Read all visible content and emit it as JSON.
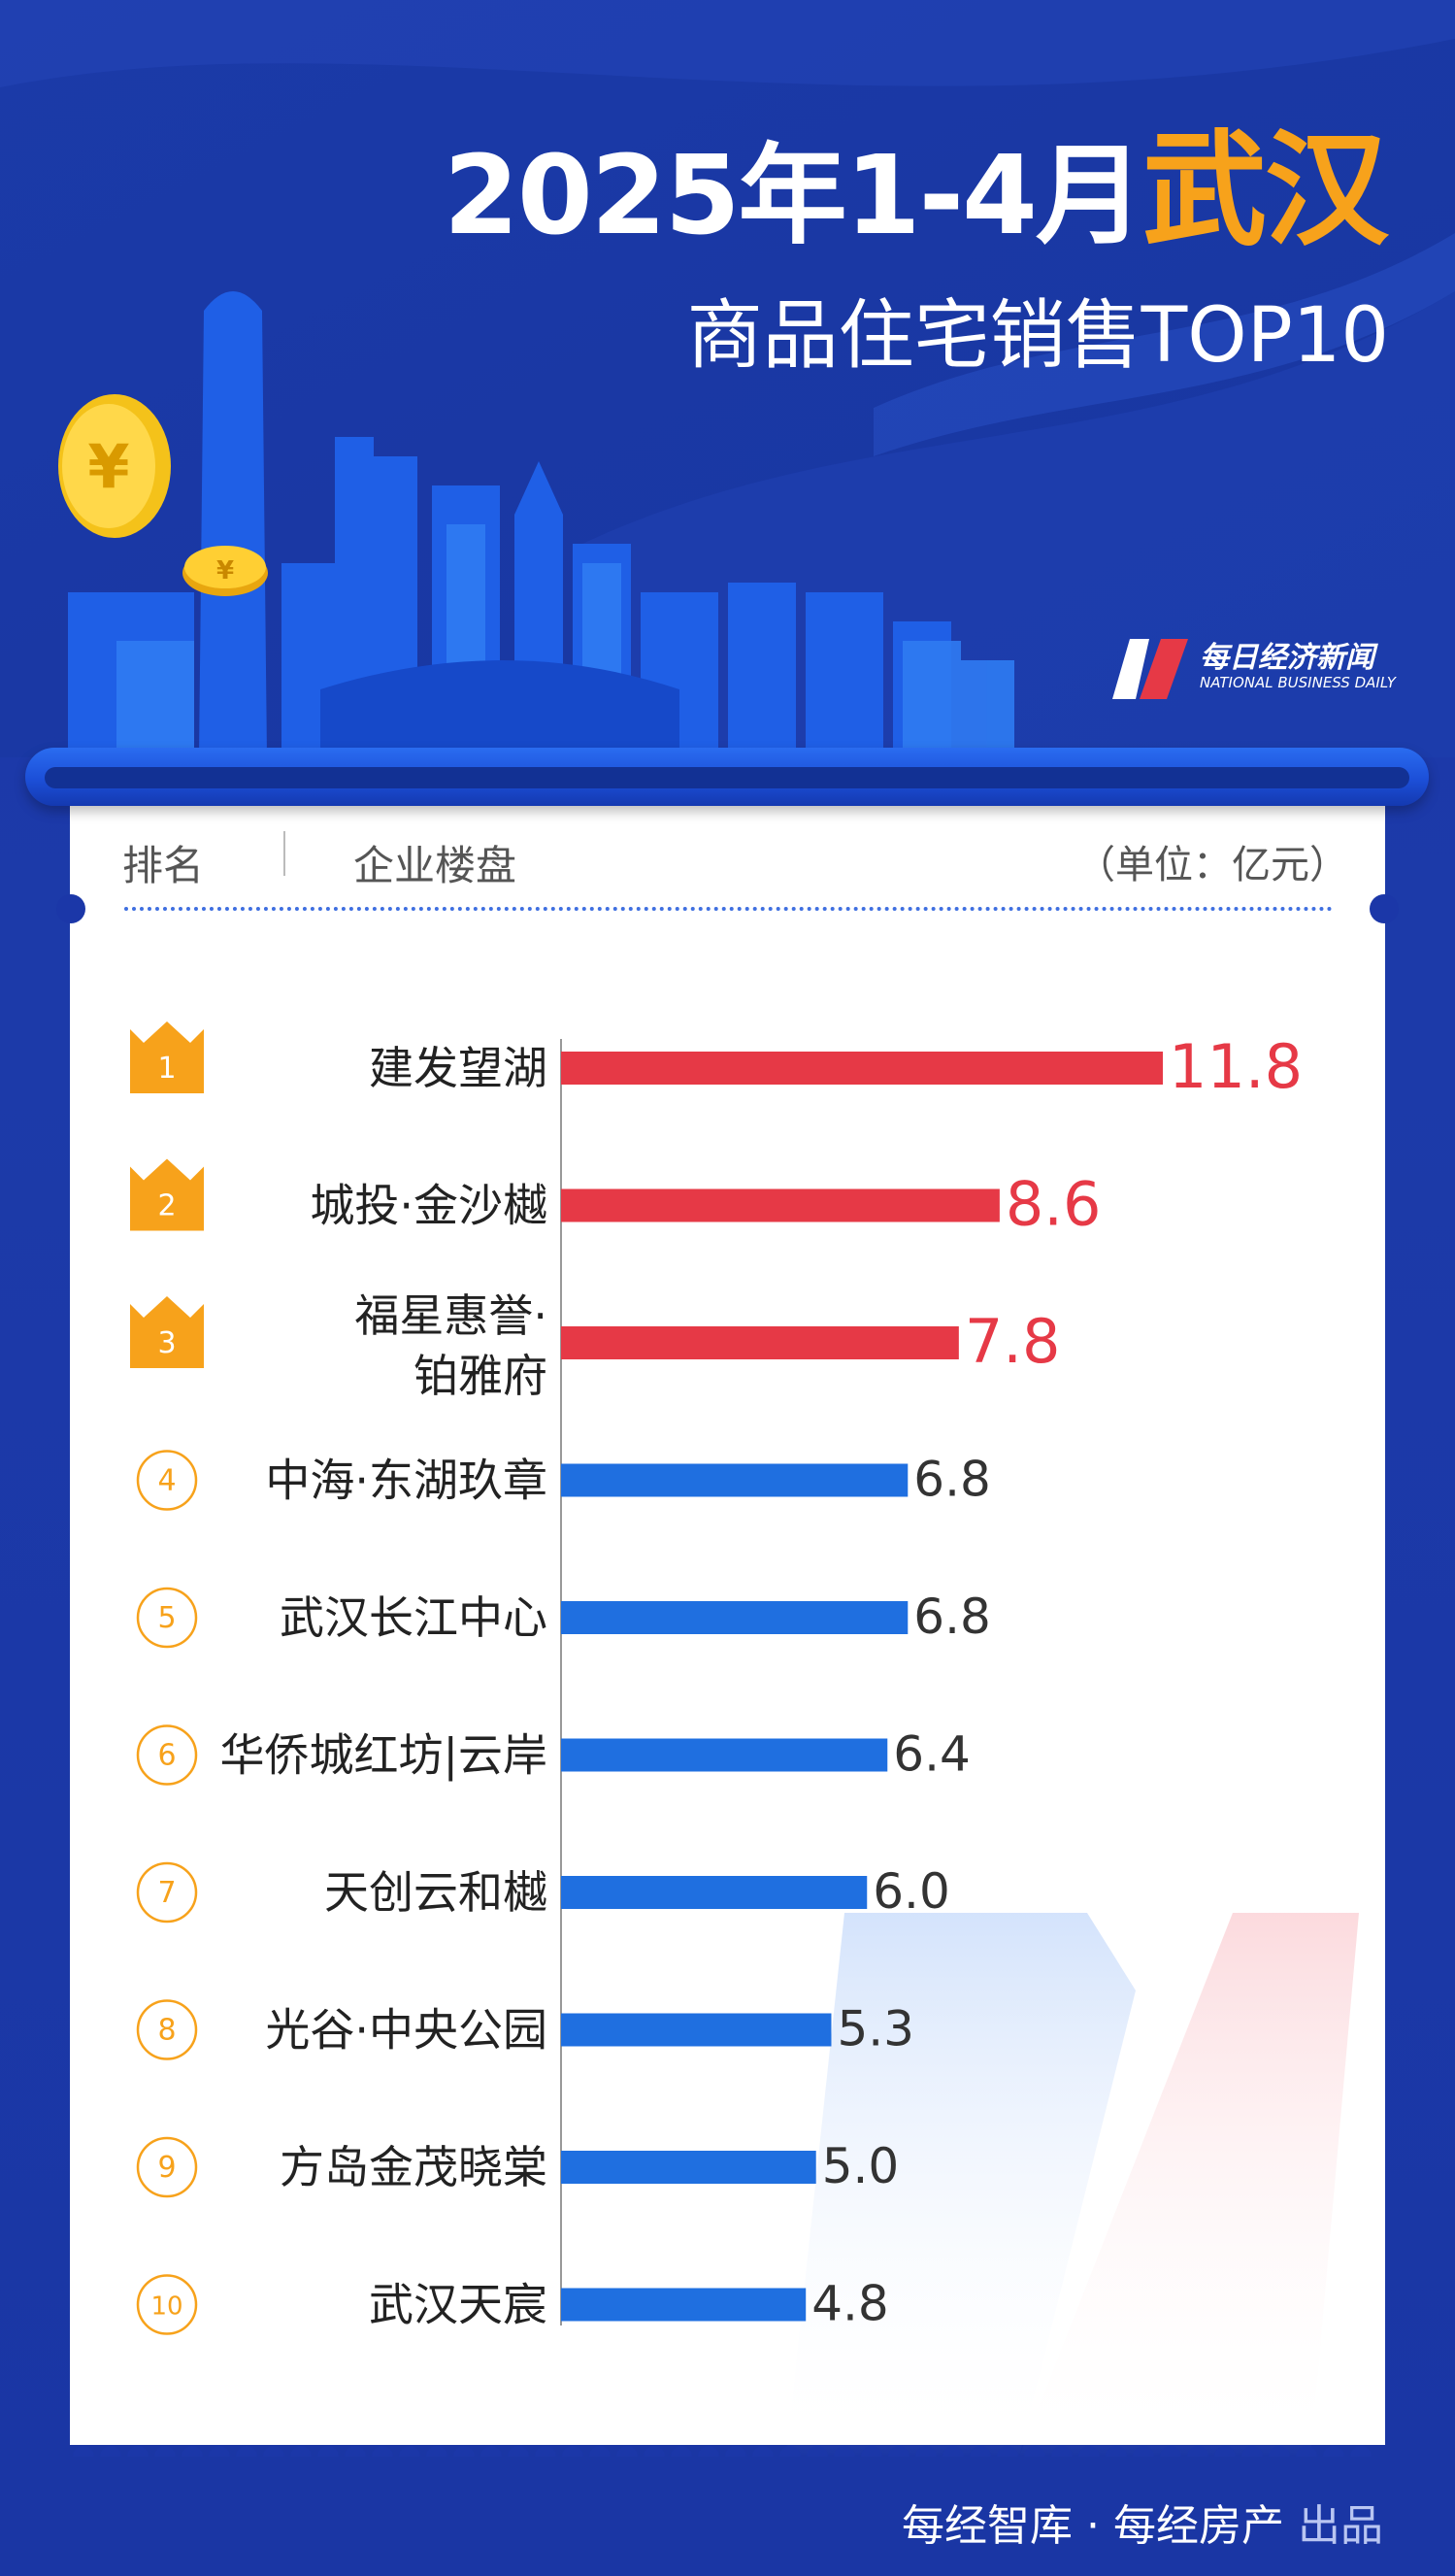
{
  "header": {
    "title_prefix": "2025年1-4月",
    "title_city": "武汉",
    "subtitle": "商品住宅销售TOP10"
  },
  "brand": {
    "name_cn": "每日经济新闻",
    "name_en": "NATIONAL BUSINESS DAILY"
  },
  "table_header": {
    "rank_label": "排名",
    "project_label": "企业楼盘",
    "unit_label": "（单位：亿元）"
  },
  "colors": {
    "top3_bar": "#e63946",
    "other_bar": "#1f6fe0",
    "medal": "#f7a21b",
    "background": "#1b37a8"
  },
  "chart_data": {
    "type": "bar",
    "orientation": "horizontal",
    "categories": [
      "建发望湖",
      "城投·金沙樾",
      "福星惠誉·铂雅府",
      "中海·东湖玖章",
      "武汉长江中心",
      "华侨城红坊|云岸",
      "天创云和樾",
      "光谷·中央公园",
      "方岛金茂晓棠",
      "武汉天宸"
    ],
    "category_lines": [
      [
        "建发望湖"
      ],
      [
        "城投·金沙樾"
      ],
      [
        "福星惠誉·",
        "铂雅府"
      ],
      [
        "中海·东湖玖章"
      ],
      [
        "武汉长江中心"
      ],
      [
        "华侨城红坊|云岸"
      ],
      [
        "天创云和樾"
      ],
      [
        "光谷·中央公园"
      ],
      [
        "方岛金茂晓棠"
      ],
      [
        "武汉天宸"
      ]
    ],
    "ranks": [
      "1",
      "2",
      "3",
      "4",
      "5",
      "6",
      "7",
      "8",
      "9",
      "10"
    ],
    "values": [
      11.8,
      8.6,
      7.8,
      6.8,
      6.8,
      6.4,
      6.0,
      5.3,
      5.0,
      4.8
    ],
    "value_labels": [
      "11.8",
      "8.6",
      "7.8",
      "6.8",
      "6.8",
      "6.4",
      "6.0",
      "5.3",
      "5.0",
      "4.8"
    ],
    "unit": "亿元",
    "highlight_top": 3,
    "xlim": [
      0,
      11.8
    ]
  },
  "footer": {
    "credit": "每经智库 · 每经房产",
    "suffix": "出品"
  }
}
